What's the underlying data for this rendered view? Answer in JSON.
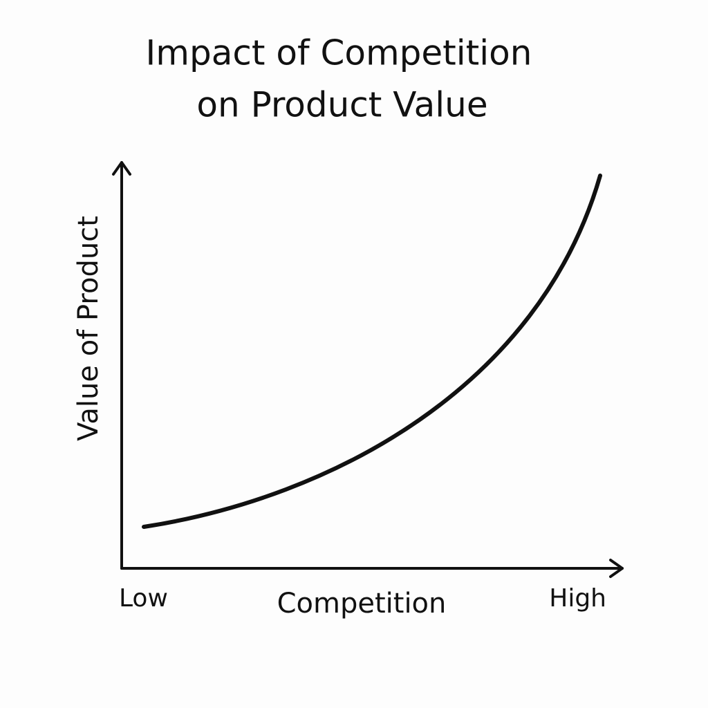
{
  "title": {
    "lines": [
      "Impact of Competition",
      "on Product Value"
    ]
  },
  "y_axis": {
    "label": "Value of Product"
  },
  "x_axis": {
    "label": "Competition",
    "low_label": "Low",
    "high_label": "High"
  }
}
